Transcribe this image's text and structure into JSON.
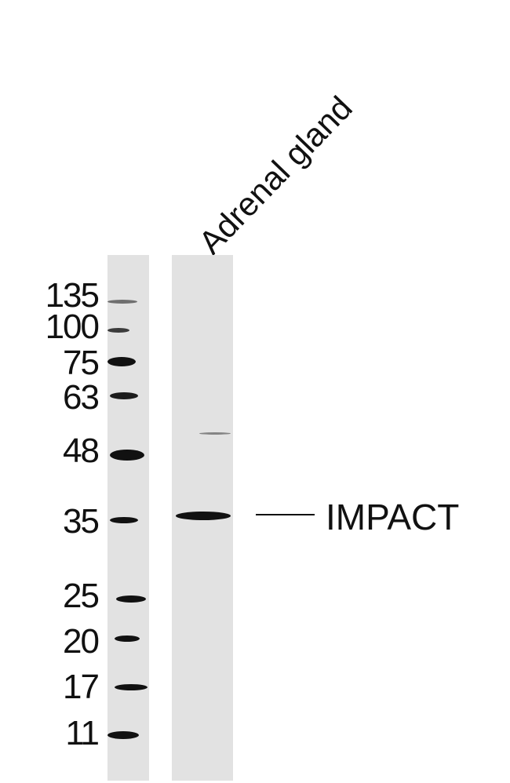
{
  "lane_labels": [
    "Adrenal gland"
  ],
  "marker_labels": [
    "135",
    "100",
    "75",
    "63",
    "48",
    "35",
    "25",
    "20",
    "17",
    "11"
  ],
  "target": {
    "label": "IMPACT"
  },
  "colors": {
    "lane_background": "#e2e2e2",
    "band": "#111111"
  }
}
